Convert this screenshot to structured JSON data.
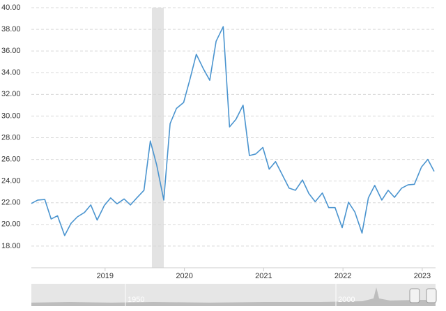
{
  "chart_data": {
    "type": "line",
    "x": [
      2018.07,
      2018.15,
      2018.24,
      2018.32,
      2018.4,
      2018.49,
      2018.57,
      2018.65,
      2018.74,
      2018.82,
      2018.9,
      2018.99,
      2019.07,
      2019.15,
      2019.24,
      2019.32,
      2019.4,
      2019.49,
      2019.57,
      2019.65,
      2019.74,
      2019.82,
      2019.9,
      2019.99,
      2020.07,
      2020.15,
      2020.24,
      2020.32,
      2020.4,
      2020.49,
      2020.57,
      2020.65,
      2020.74,
      2020.82,
      2020.9,
      2020.99,
      2021.07,
      2021.15,
      2021.24,
      2021.32,
      2021.4,
      2021.49,
      2021.57,
      2021.65,
      2021.74,
      2021.82,
      2021.9,
      2021.99,
      2022.07,
      2022.15,
      2022.24,
      2022.32,
      2022.4,
      2022.49,
      2022.57,
      2022.65,
      2022.74,
      2022.82,
      2022.9,
      2022.99,
      2023.07,
      2023.15
    ],
    "series": [
      {
        "color": "#4a94cf",
        "values": [
          21.93,
          22.25,
          22.3,
          20.5,
          20.8,
          18.97,
          20.1,
          20.7,
          21.1,
          21.8,
          20.4,
          21.75,
          22.45,
          21.9,
          22.35,
          21.8,
          22.45,
          23.15,
          27.7,
          25.5,
          22.25,
          29.3,
          30.7,
          31.25,
          33.4,
          35.7,
          34.35,
          33.3,
          36.9,
          38.25,
          29.0,
          29.7,
          31.0,
          26.35,
          26.5,
          27.1,
          25.1,
          25.8,
          24.5,
          23.35,
          23.15,
          24.1,
          22.85,
          22.1,
          22.9,
          21.55,
          21.55,
          19.7,
          22.05,
          21.15,
          19.2,
          22.45,
          23.6,
          22.25,
          23.15,
          22.5,
          23.35,
          23.65,
          23.7,
          25.3,
          26.0,
          24.9
        ]
      }
    ],
    "xlim": [
      2018.07,
      2023.15
    ],
    "xticks": [
      2019,
      2020,
      2021,
      2022,
      2023
    ],
    "ylim": [
      16,
      40
    ],
    "yticks": [
      {
        "value": 18,
        "label": "18.00"
      },
      {
        "value": 20,
        "label": "20.00"
      },
      {
        "value": 22,
        "label": "22.00"
      },
      {
        "value": 24,
        "label": "24.00"
      },
      {
        "value": 26,
        "label": "26.00"
      },
      {
        "value": 28,
        "label": "28.00"
      },
      {
        "value": 30,
        "label": "30.00"
      },
      {
        "value": 32,
        "label": "32.00"
      },
      {
        "value": 34,
        "label": "34.00"
      },
      {
        "value": 36,
        "label": "36.00"
      },
      {
        "value": 38,
        "label": "38.00"
      },
      {
        "value": 40,
        "label": "40.00"
      }
    ],
    "grid": true,
    "shaded_band": [
      2019.59,
      2019.74
    ]
  },
  "navigator": {
    "labels": [
      "1950",
      "2000"
    ]
  }
}
